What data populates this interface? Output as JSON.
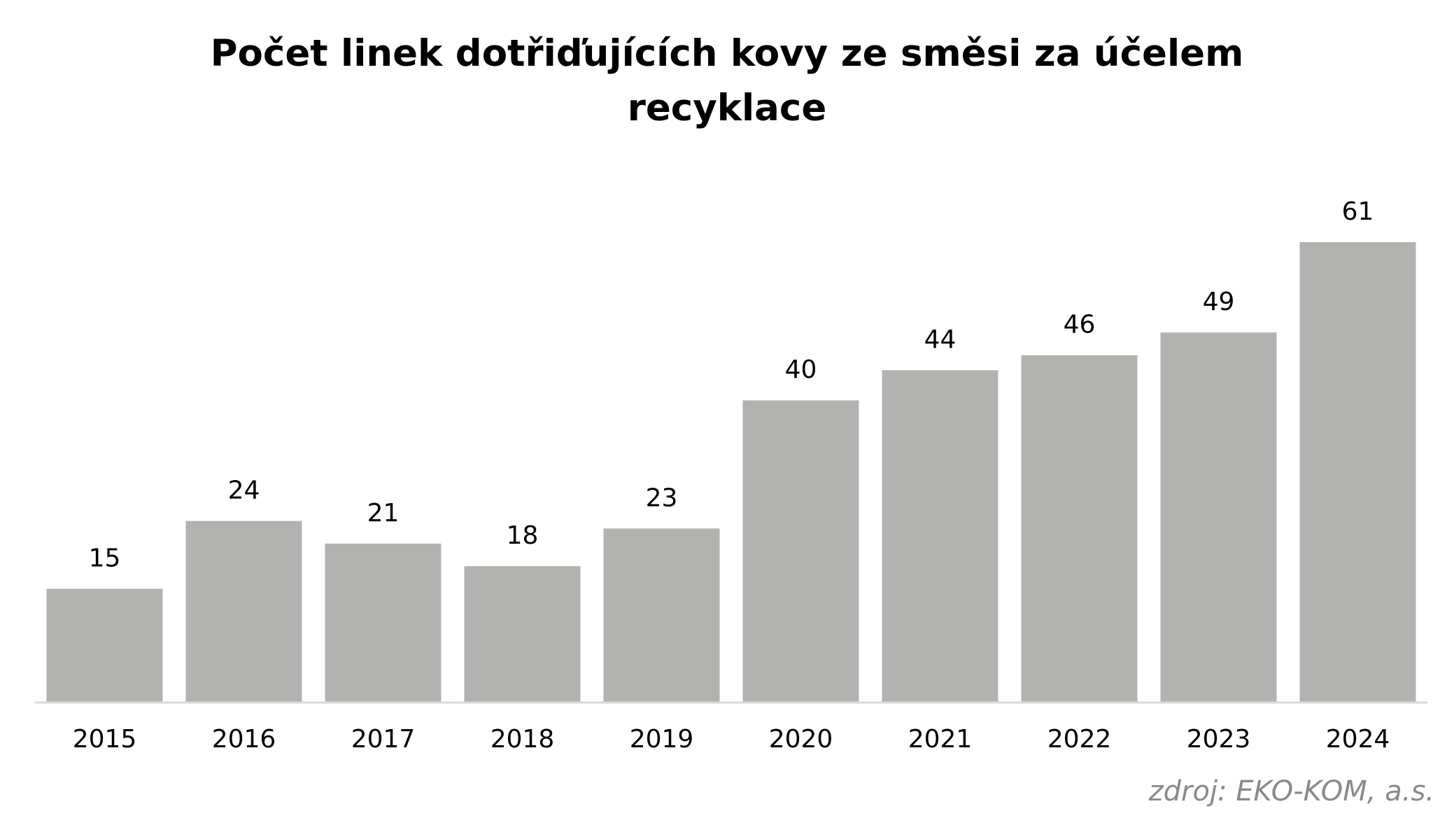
{
  "chart_data": {
    "type": "bar",
    "title_lines": [
      "Počet linek dotřiďujících kovy ze směsi za účelem",
      "recyklace"
    ],
    "categories": [
      "2015",
      "2016",
      "2017",
      "2018",
      "2019",
      "2020",
      "2021",
      "2022",
      "2023",
      "2024"
    ],
    "values": [
      15,
      24,
      21,
      18,
      23,
      40,
      44,
      46,
      49,
      61
    ],
    "xlabel": "",
    "ylabel": "",
    "ylim": [
      0,
      61
    ],
    "grid": false,
    "legend": "none",
    "bar_color": "#b2b3b1",
    "axis_color": "#d9d9d9",
    "data_labels": true
  },
  "source_note": "zdroj: EKO-KOM, a.s."
}
